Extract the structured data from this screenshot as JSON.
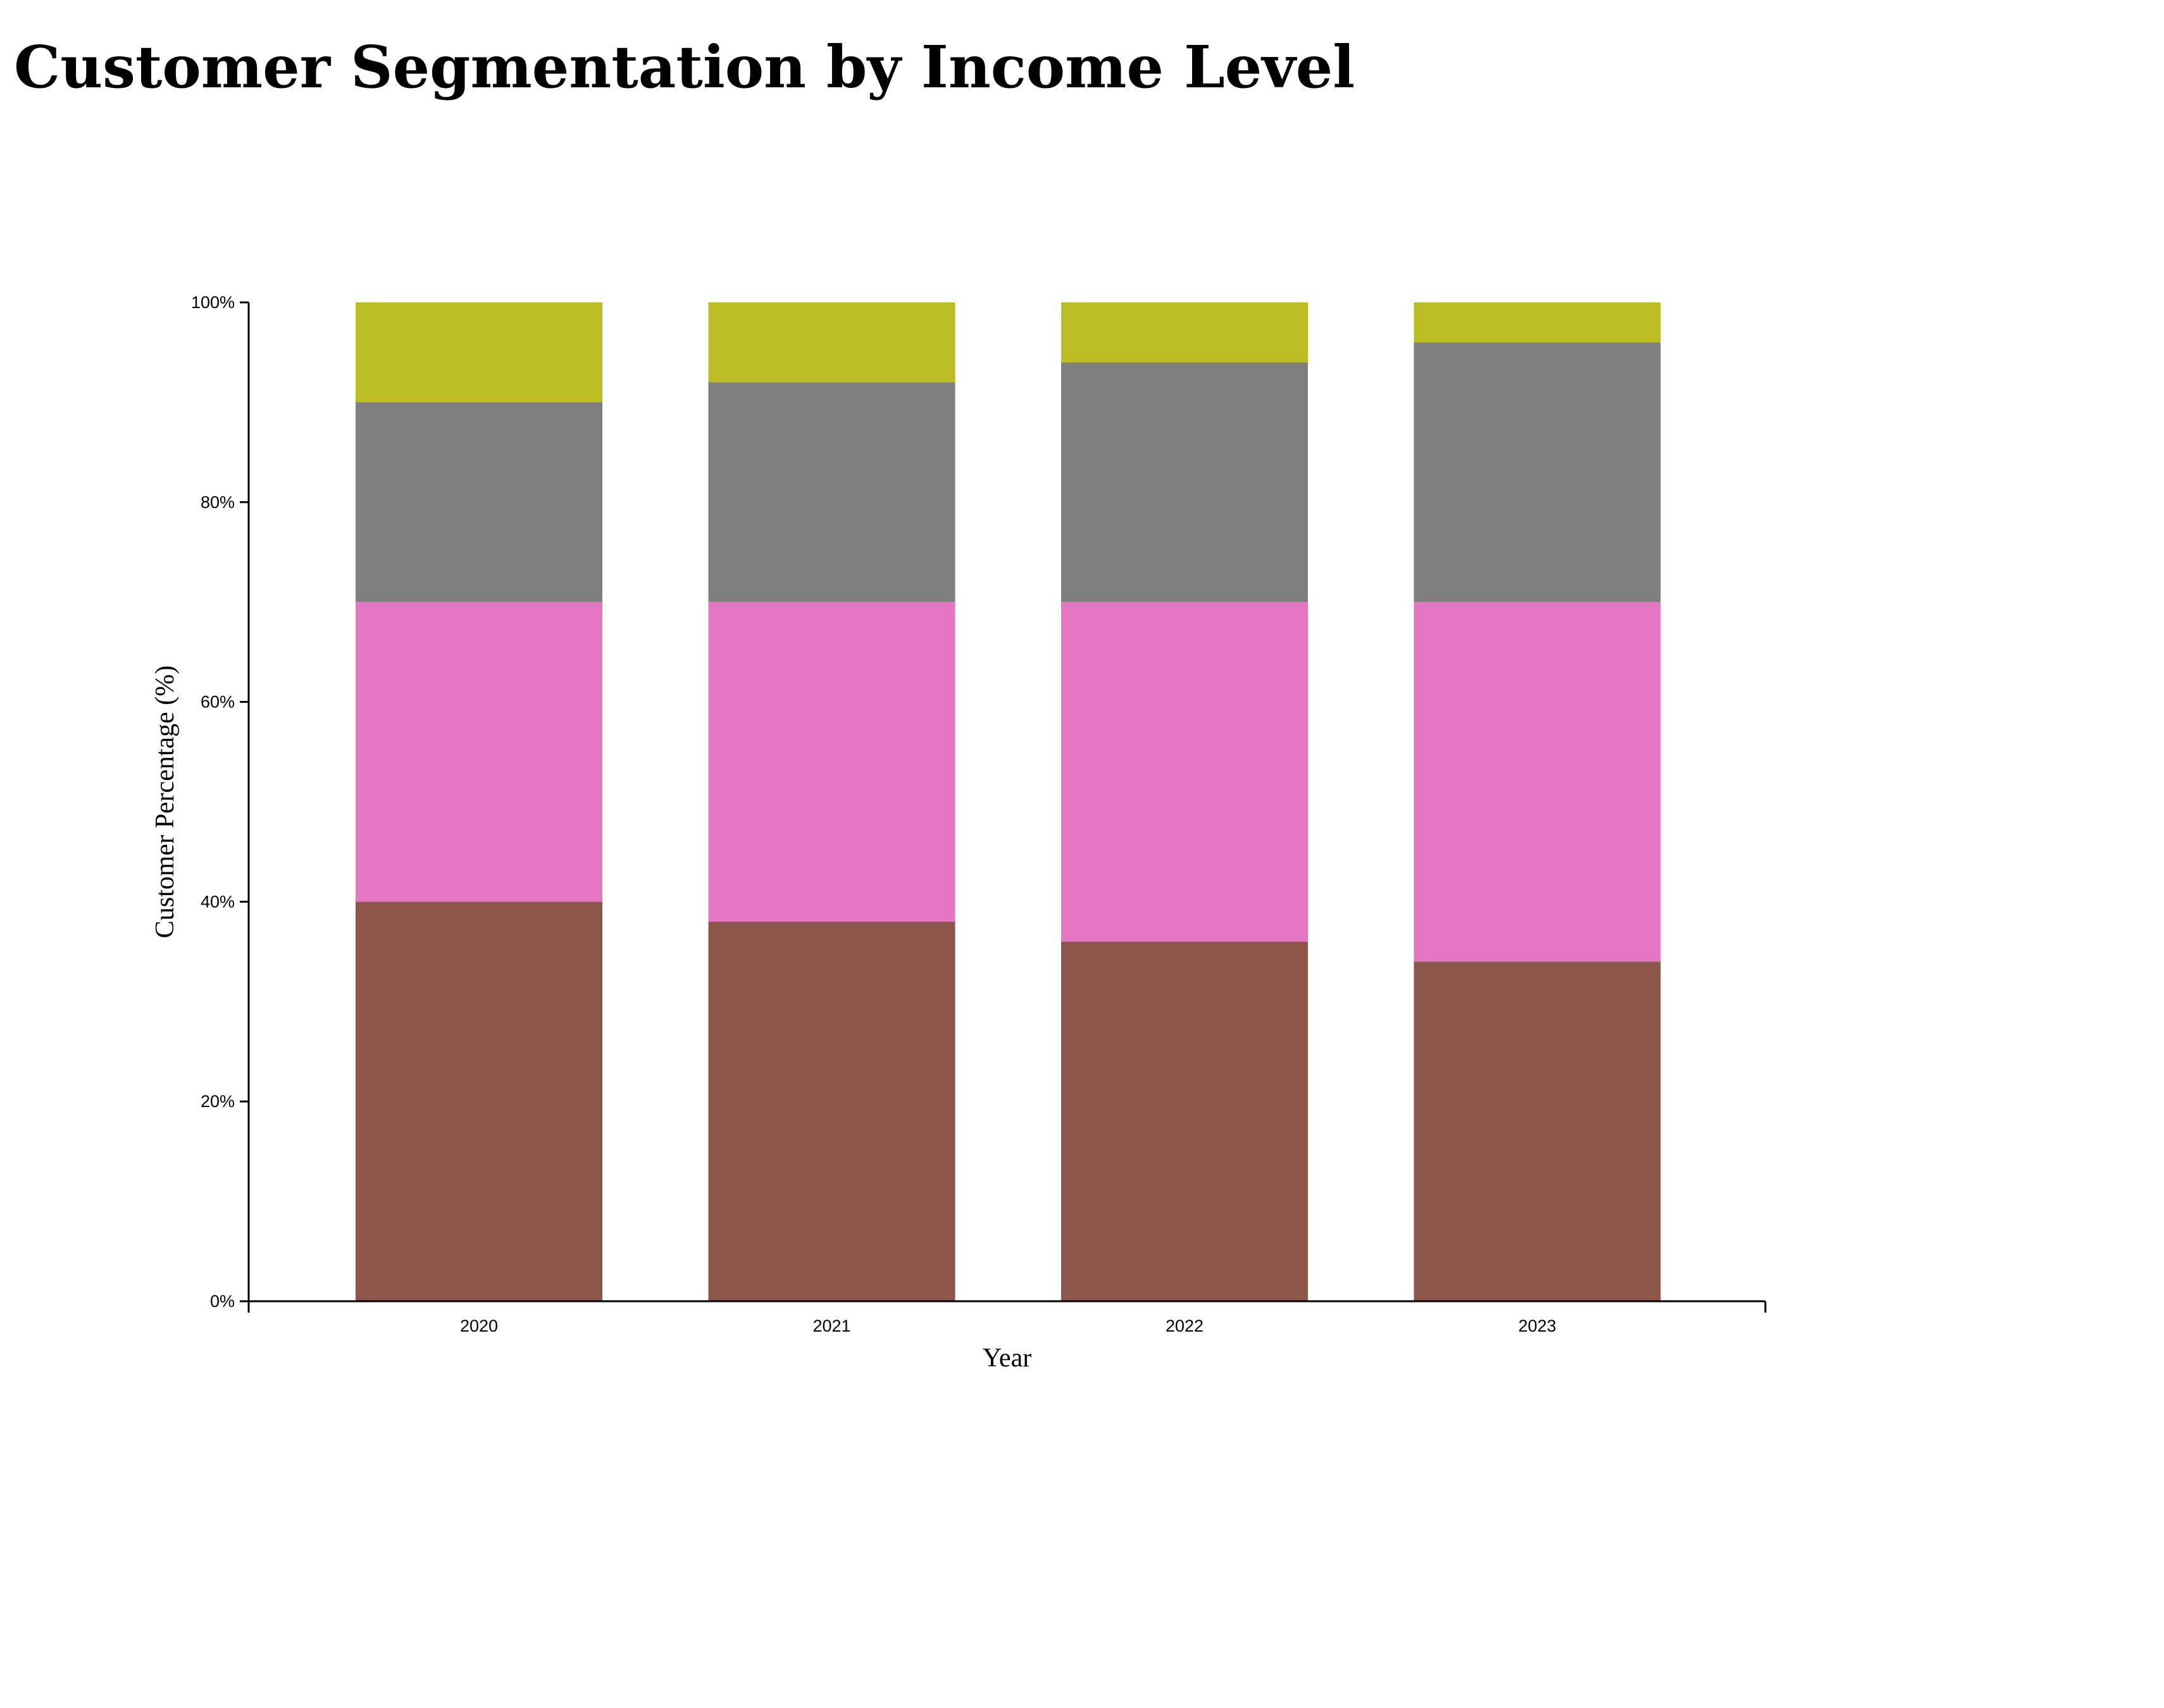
{
  "chart_data": {
    "type": "bar",
    "stacked": true,
    "title": "Customer Segmentation by Income Level",
    "xlabel": "Year",
    "ylabel": "Customer Percentage (%)",
    "categories": [
      "2020",
      "2021",
      "2022",
      "2023"
    ],
    "ylim": [
      0,
      100
    ],
    "yticks": [
      "0%",
      "20%",
      "40%",
      "60%",
      "80%",
      "100%"
    ],
    "grid": false,
    "legend": "none",
    "series": [
      {
        "color": "#8c564b",
        "values": [
          40,
          38,
          36,
          34
        ]
      },
      {
        "color": "#e377c2",
        "values": [
          30,
          32,
          34,
          36
        ]
      },
      {
        "color": "#7f7f7f",
        "values": [
          20,
          22,
          24,
          26
        ]
      },
      {
        "color": "#bcbd22",
        "values": [
          10,
          8,
          6,
          4
        ]
      }
    ]
  }
}
